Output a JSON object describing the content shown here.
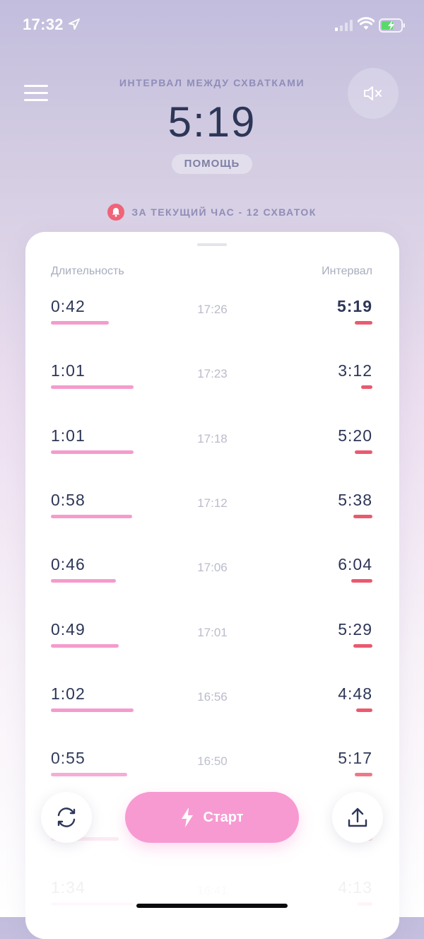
{
  "status_bar": {
    "time": "17:32"
  },
  "header": {
    "interval_label": "ИНТЕРВАЛ МЕЖДУ СХВАТКАМИ",
    "interval_value": "5:19",
    "help_label": "ПОМОЩЬ",
    "hour_summary": "ЗА ТЕКУЩИЙ ЧАС - 12 СХВАТОК"
  },
  "table": {
    "col_duration": "Длительность",
    "col_interval": "Интервал",
    "rows": [
      {
        "duration": "0:42",
        "time": "17:26",
        "interval": "5:19",
        "duration_fraction": 0.36,
        "interval_fraction": 0.11
      },
      {
        "duration": "1:01",
        "time": "17:23",
        "interval": "3:12",
        "duration_fraction": 0.51,
        "interval_fraction": 0.07
      },
      {
        "duration": "1:01",
        "time": "17:18",
        "interval": "5:20",
        "duration_fraction": 0.51,
        "interval_fraction": 0.11
      },
      {
        "duration": "0:58",
        "time": "17:12",
        "interval": "5:38",
        "duration_fraction": 0.5,
        "interval_fraction": 0.12
      },
      {
        "duration": "0:46",
        "time": "17:06",
        "interval": "6:04",
        "duration_fraction": 0.4,
        "interval_fraction": 0.13
      },
      {
        "duration": "0:49",
        "time": "17:01",
        "interval": "5:29",
        "duration_fraction": 0.42,
        "interval_fraction": 0.12
      },
      {
        "duration": "1:02",
        "time": "16:56",
        "interval": "4:48",
        "duration_fraction": 0.51,
        "interval_fraction": 0.1
      },
      {
        "duration": "0:55",
        "time": "16:50",
        "interval": "5:17",
        "duration_fraction": 0.47,
        "interval_fraction": 0.11
      },
      {
        "duration": "",
        "time": "",
        "interval": "",
        "duration_fraction": 0.42,
        "interval_fraction": 0.07
      },
      {
        "duration": "1:34",
        "time": "16:41",
        "interval": "4:13",
        "duration_fraction": 0.51,
        "interval_fraction": 0.09
      }
    ]
  },
  "controls": {
    "start_label": "Старт"
  },
  "colors": {
    "duration_bar": "#f59bcc",
    "interval_bar": "#ea5a6f",
    "start_button": "#f79ad2",
    "alert_badge": "#f06478"
  },
  "icons": {
    "menu": "hamburger-icon",
    "mute": "speaker-mute-icon",
    "bell": "bell-icon",
    "reset": "refresh-icon",
    "start": "lightning-icon",
    "share": "share-icon"
  }
}
